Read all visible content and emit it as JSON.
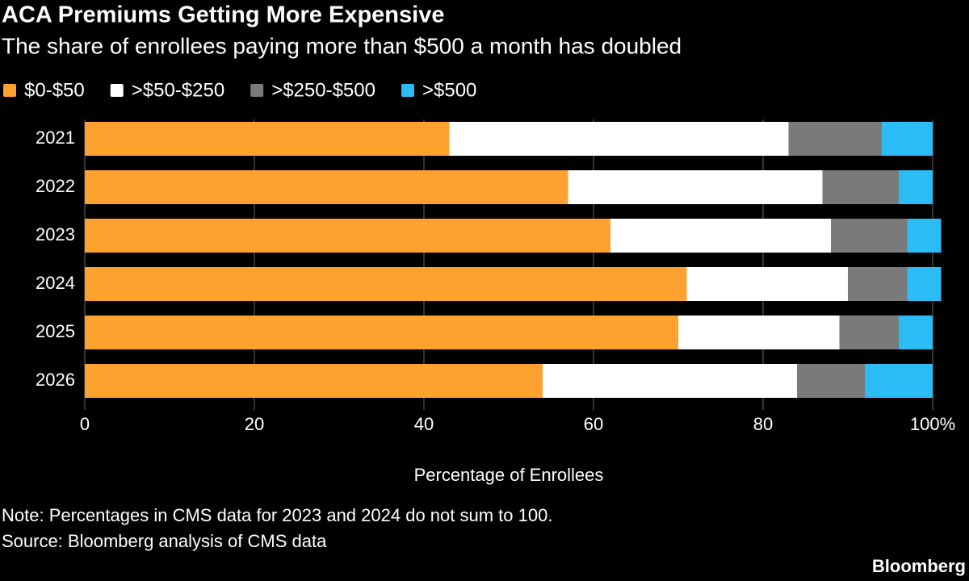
{
  "chart_data": {
    "type": "stacked_barh",
    "title": "ACA Premiums Getting More Expensive",
    "subtitle": "The share of enrollees paying more than $500 a month has doubled",
    "x_label": "Percentage of Enrollees",
    "note": "Note: Percentages in CMS data for 2023 and 2024 do not sum to 100.",
    "source": "Source: Bloomberg analysis of CMS data",
    "brand": "Bloomberg",
    "categories": [
      "2021",
      "2022",
      "2023",
      "2024",
      "2025",
      "2026"
    ],
    "series": [
      {
        "name": "$0-$50",
        "color": "#ffa12e",
        "values": [
          43,
          57,
          62,
          71,
          70,
          54
        ]
      },
      {
        "name": ">$50-$250",
        "color": "#ffffff",
        "values": [
          40,
          30,
          26,
          19,
          19,
          30
        ]
      },
      {
        "name": ">$250-$500",
        "color": "#7a7a7a",
        "values": [
          11,
          9,
          9,
          7,
          7,
          8
        ]
      },
      {
        "name": ">$500",
        "color": "#2bbcf6",
        "values": [
          6,
          4,
          4,
          4,
          4,
          8
        ]
      }
    ],
    "xlim": [
      0,
      100
    ],
    "xticks": [
      0,
      20,
      40,
      60,
      80,
      {
        "value": 100,
        "label": "100%"
      }
    ],
    "grid": true,
    "legend": "top"
  }
}
